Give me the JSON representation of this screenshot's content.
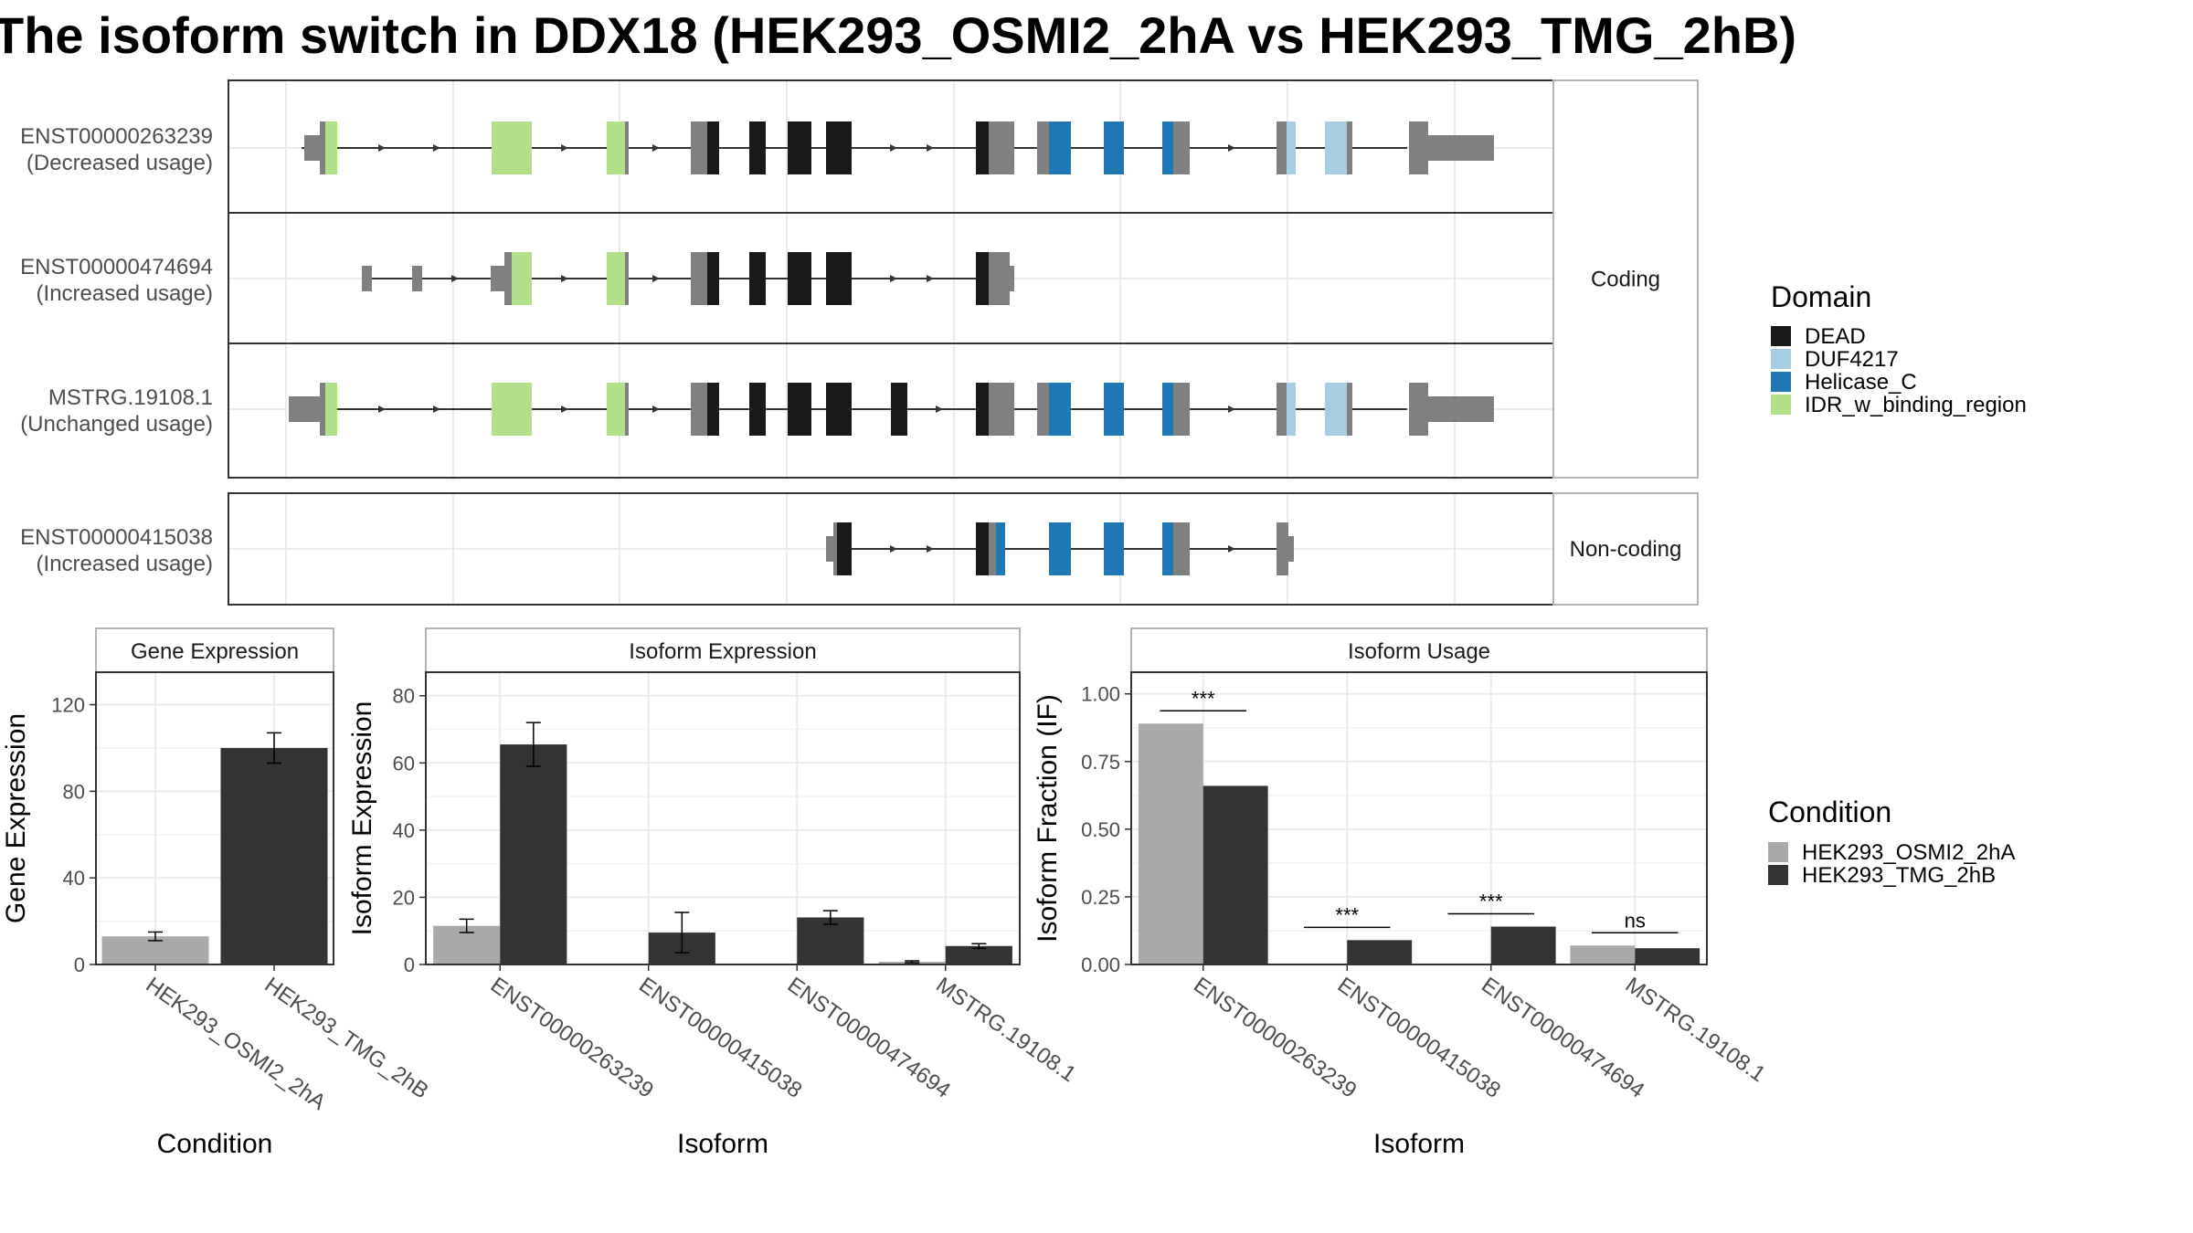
{
  "title": "The isoform switch in DDX18 (HEK293_OSMI2_2hA vs HEK293_TMG_2hB)",
  "colors": {
    "DEAD": "#1a1a1a",
    "DUF4217": "#a6cee3",
    "Helicase_C": "#1f78b4",
    "IDR_w_binding_region": "#b2df8a",
    "exon": "#808080",
    "cond1": "#a9a9a9",
    "cond2": "#333333"
  },
  "transcripts": [
    {
      "id": "ENST00000263239",
      "usage": "(Decreased usage)",
      "group": "coding"
    },
    {
      "id": "ENST00000474694",
      "usage": "(Increased usage)",
      "group": "coding"
    },
    {
      "id": "MSTRG.19108.1",
      "usage": "(Unchanged usage)",
      "group": "coding"
    },
    {
      "id": "ENST00000415038",
      "usage": "(Increased usage)",
      "group": "noncoding"
    }
  ],
  "facets": {
    "coding": "Coding",
    "noncoding": "Non-coding"
  },
  "legend": {
    "domain_title": "Domain",
    "domain_items": [
      {
        "label": "DEAD",
        "color": "#1a1a1a"
      },
      {
        "label": "DUF4217",
        "color": "#a6cee3"
      },
      {
        "label": "Helicase_C",
        "color": "#1f78b4"
      },
      {
        "label": "IDR_w_binding_region",
        "color": "#b2df8a"
      }
    ],
    "condition_title": "Condition",
    "condition_items": [
      {
        "label": "HEK293_OSMI2_2hA",
        "color": "#a9a9a9"
      },
      {
        "label": "HEK293_TMG_2hB",
        "color": "#333333"
      }
    ]
  },
  "chart_data": [
    {
      "type": "bar",
      "title": "Gene Expression",
      "xlabel": "Condition",
      "ylabel": "Gene Expression",
      "categories": [
        "HEK293_OSMI2_2hA",
        "HEK293_TMG_2hB"
      ],
      "values": [
        13,
        100
      ],
      "errors": [
        [
          11,
          15
        ],
        [
          93,
          107
        ]
      ],
      "ylim": [
        0,
        135
      ],
      "yticks": [
        0,
        40,
        80,
        120
      ]
    },
    {
      "type": "bar",
      "title": "Isoform Expression",
      "xlabel": "Isoform",
      "ylabel": "Isoform Expression",
      "categories": [
        "ENST00000263239",
        "ENST00000415038",
        "ENST00000474694",
        "MSTRG.19108.1"
      ],
      "series": [
        {
          "name": "HEK293_OSMI2_2hA",
          "values": [
            11.5,
            0,
            0,
            0.8
          ],
          "errors": [
            [
              9.5,
              13.5
            ],
            [
              0,
              0
            ],
            [
              0,
              0
            ],
            [
              0.5,
              1.1
            ]
          ]
        },
        {
          "name": "HEK293_TMG_2hB",
          "values": [
            65.5,
            9.5,
            14,
            5.5
          ],
          "errors": [
            [
              59,
              72
            ],
            [
              3.5,
              15.5
            ],
            [
              12,
              16
            ],
            [
              4.8,
              6.2
            ]
          ]
        }
      ],
      "ylim": [
        0,
        87
      ],
      "yticks": [
        0,
        20,
        40,
        60,
        80
      ]
    },
    {
      "type": "bar",
      "title": "Isoform Usage",
      "xlabel": "Isoform",
      "ylabel": "Isoform Fraction (IF)",
      "categories": [
        "ENST00000263239",
        "ENST00000415038",
        "ENST00000474694",
        "MSTRG.19108.1"
      ],
      "series": [
        {
          "name": "HEK293_OSMI2_2hA",
          "values": [
            0.89,
            0,
            0,
            0.07
          ]
        },
        {
          "name": "HEK293_TMG_2hB",
          "values": [
            0.66,
            0.09,
            0.14,
            0.06
          ]
        }
      ],
      "significance": [
        "***",
        "***",
        "***",
        "ns"
      ],
      "ylim": [
        0,
        1.08
      ],
      "yticks": [
        "0.00",
        "0.25",
        "0.50",
        "0.75",
        "1.00"
      ]
    }
  ]
}
